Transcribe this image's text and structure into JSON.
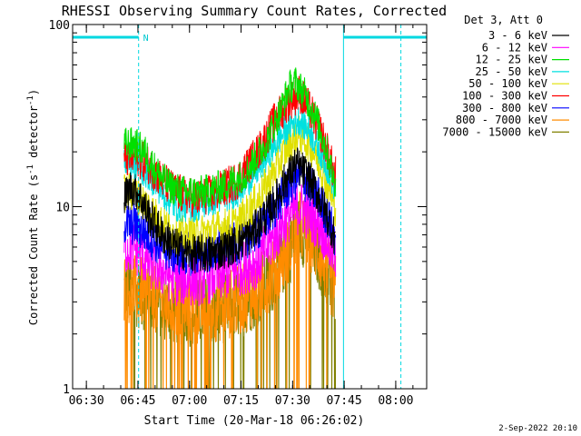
{
  "chart_data": {
    "type": "line",
    "title": "RHESSI Observing Summary Count Rates, Corrected",
    "xlabel": "Start Time (20-Mar-18 06:26:02)",
    "ylabel_main": "Corrected Count Rate (s",
    "ylabel_sup1": "-1",
    "ylabel_mid": " detector",
    "ylabel_sup2": "-1",
    "ylabel_end": ")",
    "y_scale": "log",
    "ylim": [
      1,
      100
    ],
    "xlim_min": [
      26,
      129
    ],
    "x_ticks": [
      {
        "min": 30,
        "label": "06:30"
      },
      {
        "min": 45,
        "label": "06:45"
      },
      {
        "min": 60,
        "label": "07:00"
      },
      {
        "min": 75,
        "label": "07:15"
      },
      {
        "min": 90,
        "label": "07:30"
      },
      {
        "min": 105,
        "label": "07:45"
      },
      {
        "min": 120,
        "label": "08:00"
      }
    ],
    "x_minor_step_min": 5,
    "y_ticks": [
      {
        "value": 1,
        "label": "1"
      },
      {
        "value": 10,
        "label": "10"
      },
      {
        "value": 100,
        "label": "100"
      }
    ],
    "legend_title": "Det 3, Att 0",
    "series": [
      {
        "name": "3 - 6 keV",
        "color": "#000000",
        "points": [
          [
            41,
            11
          ],
          [
            43,
            13
          ],
          [
            45,
            12
          ],
          [
            48,
            9
          ],
          [
            52,
            7
          ],
          [
            56,
            6
          ],
          [
            60,
            5.5
          ],
          [
            66,
            5.5
          ],
          [
            72,
            6
          ],
          [
            78,
            7
          ],
          [
            84,
            10
          ],
          [
            88,
            14
          ],
          [
            91,
            17
          ],
          [
            94,
            15
          ],
          [
            97,
            12
          ],
          [
            100,
            9
          ],
          [
            102,
            7
          ]
        ]
      },
      {
        "name": "6 - 12 keV",
        "color": "#ff00ff",
        "points": [
          [
            41,
            6
          ],
          [
            44,
            6
          ],
          [
            48,
            5
          ],
          [
            52,
            4.5
          ],
          [
            56,
            4
          ],
          [
            62,
            4
          ],
          [
            68,
            4.2
          ],
          [
            74,
            4.5
          ],
          [
            80,
            5
          ],
          [
            85,
            7
          ],
          [
            89,
            9
          ],
          [
            92,
            10
          ],
          [
            95,
            9
          ],
          [
            98,
            8
          ],
          [
            100,
            6.5
          ],
          [
            102,
            5.5
          ]
        ]
      },
      {
        "name": "12 - 25 keV",
        "color": "#00e000",
        "points": [
          [
            41,
            22
          ],
          [
            44,
            22
          ],
          [
            47,
            20
          ],
          [
            50,
            16
          ],
          [
            54,
            13
          ],
          [
            58,
            12
          ],
          [
            64,
            12
          ],
          [
            70,
            13
          ],
          [
            76,
            15
          ],
          [
            82,
            22
          ],
          [
            86,
            32
          ],
          [
            89,
            45
          ],
          [
            91,
            48
          ],
          [
            94,
            40
          ],
          [
            97,
            30
          ],
          [
            100,
            20
          ],
          [
            102,
            14
          ]
        ]
      },
      {
        "name": "25 - 50 keV",
        "color": "#00e0e0",
        "points": [
          [
            41,
            18
          ],
          [
            44,
            17
          ],
          [
            48,
            15
          ],
          [
            52,
            12
          ],
          [
            56,
            10
          ],
          [
            62,
            10
          ],
          [
            68,
            11
          ],
          [
            74,
            12
          ],
          [
            80,
            16
          ],
          [
            85,
            22
          ],
          [
            89,
            28
          ],
          [
            92,
            30
          ],
          [
            95,
            26
          ],
          [
            98,
            20
          ],
          [
            101,
            15
          ],
          [
            102,
            13
          ]
        ]
      },
      {
        "name": "50 - 100 keV",
        "color": "#e0e000",
        "points": [
          [
            41,
            12
          ],
          [
            44,
            12
          ],
          [
            48,
            10
          ],
          [
            52,
            8
          ],
          [
            56,
            7
          ],
          [
            62,
            7
          ],
          [
            68,
            7.5
          ],
          [
            74,
            8
          ],
          [
            80,
            11
          ],
          [
            85,
            16
          ],
          [
            89,
            22
          ],
          [
            92,
            25
          ],
          [
            95,
            22
          ],
          [
            98,
            17
          ],
          [
            101,
            12
          ],
          [
            102,
            10
          ]
        ]
      },
      {
        "name": "100 - 300 keV",
        "color": "#ff0000",
        "points": [
          [
            41,
            18
          ],
          [
            44,
            19
          ],
          [
            48,
            17
          ],
          [
            52,
            14
          ],
          [
            56,
            12
          ],
          [
            62,
            11
          ],
          [
            68,
            12
          ],
          [
            74,
            14
          ],
          [
            80,
            20
          ],
          [
            85,
            30
          ],
          [
            89,
            38
          ],
          [
            92,
            42
          ],
          [
            95,
            34
          ],
          [
            98,
            26
          ],
          [
            101,
            18
          ],
          [
            102,
            15
          ]
        ]
      },
      {
        "name": "300 - 800 keV",
        "color": "#0000ff",
        "points": [
          [
            41,
            8
          ],
          [
            44,
            8
          ],
          [
            48,
            7
          ],
          [
            52,
            6
          ],
          [
            56,
            5.5
          ],
          [
            62,
            5.5
          ],
          [
            68,
            5.8
          ],
          [
            74,
            6.3
          ],
          [
            80,
            7.5
          ],
          [
            85,
            10
          ],
          [
            89,
            13
          ],
          [
            92,
            15
          ],
          [
            95,
            13
          ],
          [
            98,
            11
          ],
          [
            101,
            8
          ],
          [
            102,
            7
          ]
        ]
      },
      {
        "name": "800 - 7000 keV",
        "color": "#ff8c00",
        "points": [
          [
            41,
            3.6
          ],
          [
            44,
            3.5
          ],
          [
            48,
            3.3
          ],
          [
            52,
            3
          ],
          [
            56,
            2.8
          ],
          [
            62,
            2.7
          ],
          [
            68,
            2.8
          ],
          [
            74,
            3
          ],
          [
            80,
            3.5
          ],
          [
            85,
            4.5
          ],
          [
            89,
            6
          ],
          [
            92,
            8
          ],
          [
            95,
            7
          ],
          [
            98,
            5.5
          ],
          [
            101,
            4
          ],
          [
            102,
            3.5
          ]
        ]
      },
      {
        "name": "7000 - 15000 keV",
        "color": "#808000",
        "points": [
          [
            41,
            3.5
          ],
          [
            44,
            3.4
          ],
          [
            48,
            3.2
          ],
          [
            52,
            2.9
          ],
          [
            56,
            2.7
          ],
          [
            62,
            2.6
          ],
          [
            68,
            2.7
          ],
          [
            74,
            2.9
          ],
          [
            80,
            3.4
          ],
          [
            85,
            4.3
          ],
          [
            89,
            5.8
          ],
          [
            92,
            7.5
          ],
          [
            95,
            6.8
          ],
          [
            98,
            5.2
          ],
          [
            101,
            3.8
          ],
          [
            102,
            3.3
          ]
        ]
      }
    ],
    "time_range_min": [
      41,
      102.5
    ],
    "annotations": {
      "night_intervals": [
        [
          26,
          45.2
        ],
        [
          104.8,
          129
        ]
      ],
      "saa_marker_label": "N",
      "saa_marker_min": 46.5,
      "vertical_lines_min": [
        26,
        45.2,
        104.8,
        121.5
      ]
    }
  },
  "footer": {
    "timestamp": "2-Sep-2022 20:10"
  }
}
